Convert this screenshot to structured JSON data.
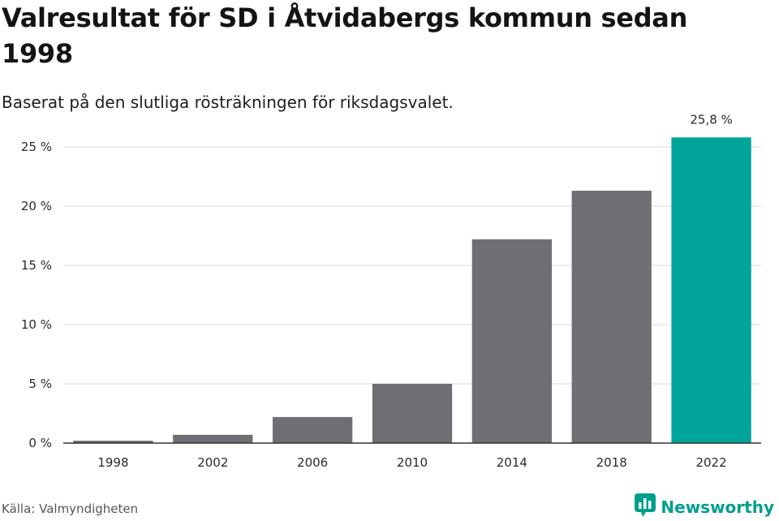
{
  "header": {
    "title": "Valresultat för SD i Åtvidabergs kommun sedan 1998",
    "subtitle": "Baserat på den slutliga rösträkningen för riksdagsvalet."
  },
  "footer": {
    "source": "Källa: Valmyndigheten",
    "brand": "Newsworthy",
    "brand_icon": "newsworthy-logo-icon"
  },
  "colors": {
    "bar": "#6f6e73",
    "highlight": "#00a499",
    "grid": "#d9d9d9",
    "axis": "#333333",
    "brand": "#009e8e"
  },
  "chart_data": {
    "type": "bar",
    "title": "Valresultat för SD i Åtvidabergs kommun sedan 1998",
    "subtitle": "Baserat på den slutliga rösträkningen för riksdagsvalet.",
    "xlabel": "",
    "ylabel": "",
    "categories": [
      "1998",
      "2002",
      "2006",
      "2010",
      "2014",
      "2018",
      "2022"
    ],
    "values": [
      0.2,
      0.7,
      2.2,
      5.0,
      17.2,
      21.3,
      25.8
    ],
    "highlight_index": 6,
    "data_labels": [
      {
        "index": 6,
        "text": "25,8 %"
      }
    ],
    "ylim": [
      0,
      27
    ],
    "yticks": [
      0,
      5,
      10,
      15,
      20,
      25
    ],
    "ytick_labels": [
      "0 %",
      "5 %",
      "10 %",
      "15 %",
      "20 %",
      "25 %"
    ],
    "grid": true,
    "legend": "none"
  }
}
